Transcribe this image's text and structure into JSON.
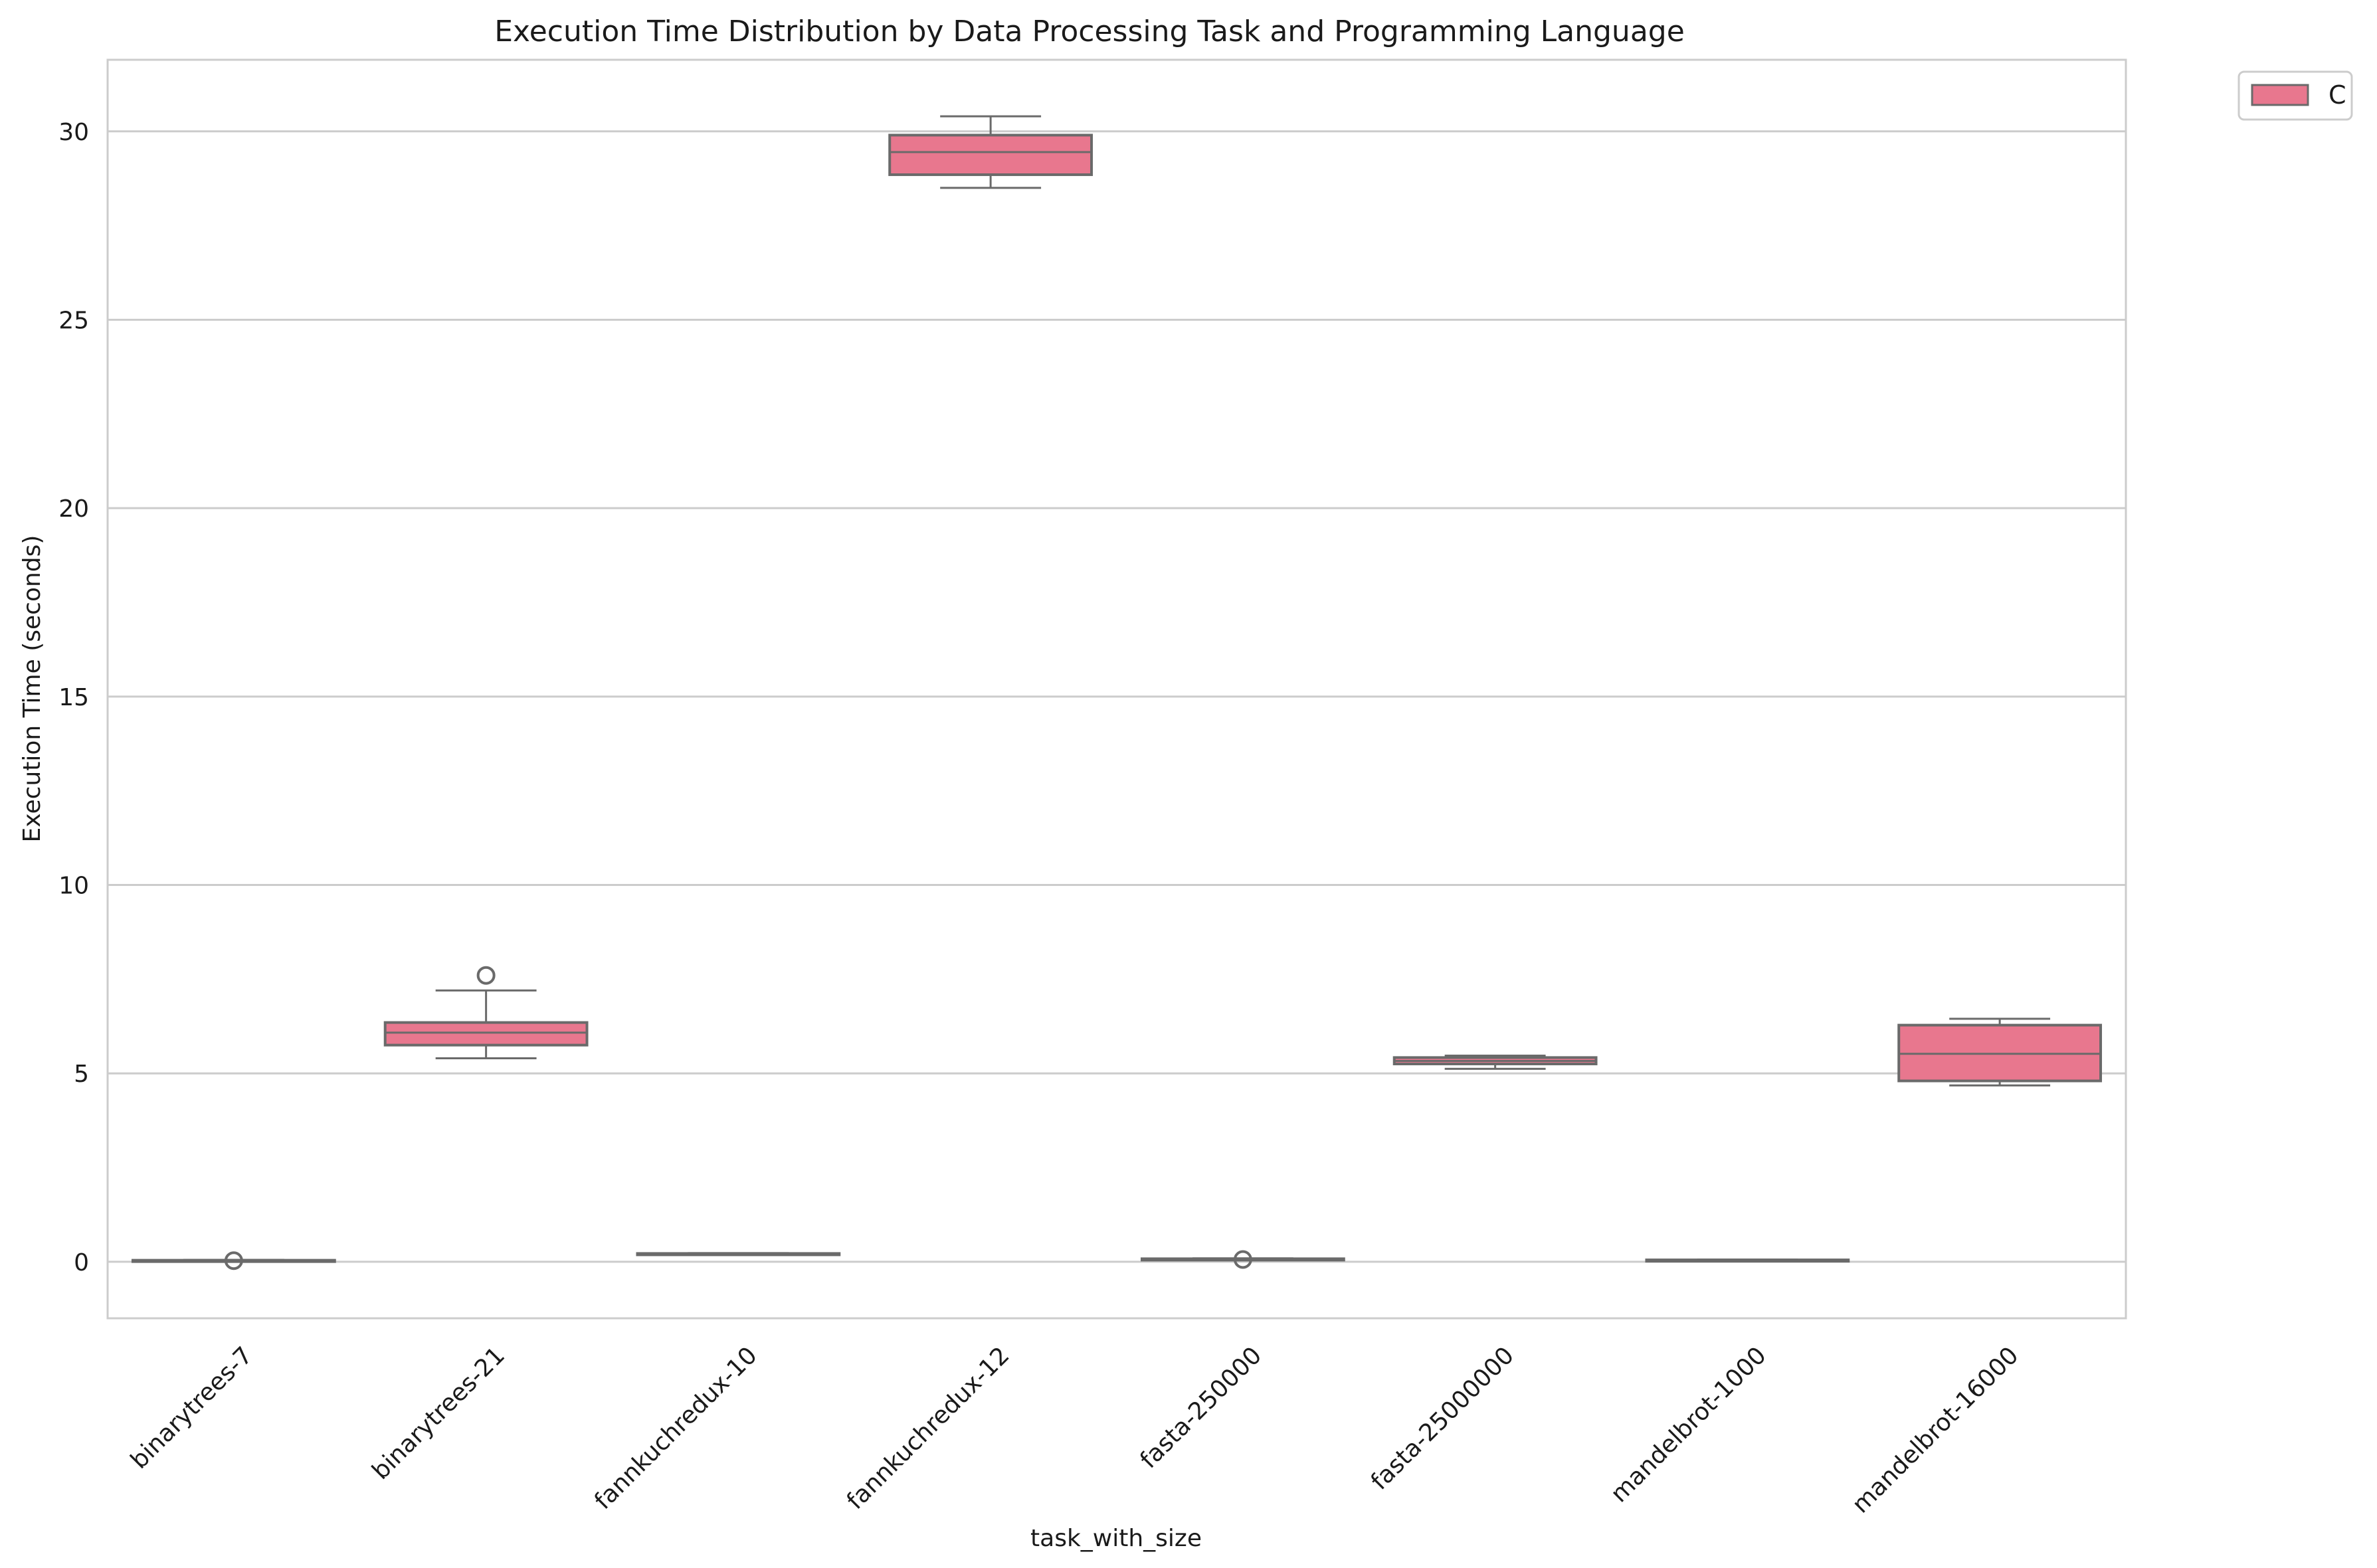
{
  "chart_data": {
    "type": "box",
    "title": "Execution Time Distribution by Data Processing Task and Programming Language",
    "xlabel": "task_with_size",
    "ylabel": "Execution Time (seconds)",
    "ylim": [
      -1.5,
      31.9
    ],
    "yticks": [
      0,
      5,
      10,
      15,
      20,
      25,
      30
    ],
    "grid": "horizontal",
    "legend": {
      "placement": "top-right-outside",
      "entries": [
        "C"
      ]
    },
    "series": [
      {
        "name": "C",
        "color": "#e8778e",
        "edge_color": "#6a6a6a",
        "boxes": [
          {
            "category": "binarytrees-7",
            "whisker_low": 0.01,
            "q1": 0.02,
            "median": 0.03,
            "q3": 0.04,
            "whisker_high": 0.05,
            "outliers": [
              0.03
            ]
          },
          {
            "category": "binarytrees-21",
            "whisker_low": 5.4,
            "q1": 5.75,
            "median": 6.08,
            "q3": 6.35,
            "whisker_high": 7.2,
            "outliers": [
              7.6
            ]
          },
          {
            "category": "fannkuchredux-10",
            "whisker_low": 0.19,
            "q1": 0.2,
            "median": 0.21,
            "q3": 0.22,
            "whisker_high": 0.23,
            "outliers": []
          },
          {
            "category": "fannkuchredux-12",
            "whisker_low": 28.5,
            "q1": 28.85,
            "median": 29.45,
            "q3": 29.9,
            "whisker_high": 30.4,
            "outliers": []
          },
          {
            "category": "fasta-250000",
            "whisker_low": 0.05,
            "q1": 0.06,
            "median": 0.07,
            "q3": 0.08,
            "whisker_high": 0.09,
            "outliers": [
              0.06
            ]
          },
          {
            "category": "fasta-25000000",
            "whisker_low": 5.12,
            "q1": 5.25,
            "median": 5.33,
            "q3": 5.42,
            "whisker_high": 5.47,
            "outliers": []
          },
          {
            "category": "mandelbrot-1000",
            "whisker_low": 0.02,
            "q1": 0.03,
            "median": 0.04,
            "q3": 0.05,
            "whisker_high": 0.06,
            "outliers": []
          },
          {
            "category": "mandelbrot-16000",
            "whisker_low": 4.68,
            "q1": 4.8,
            "median": 5.52,
            "q3": 6.28,
            "whisker_high": 6.45,
            "outliers": []
          }
        ]
      }
    ]
  }
}
